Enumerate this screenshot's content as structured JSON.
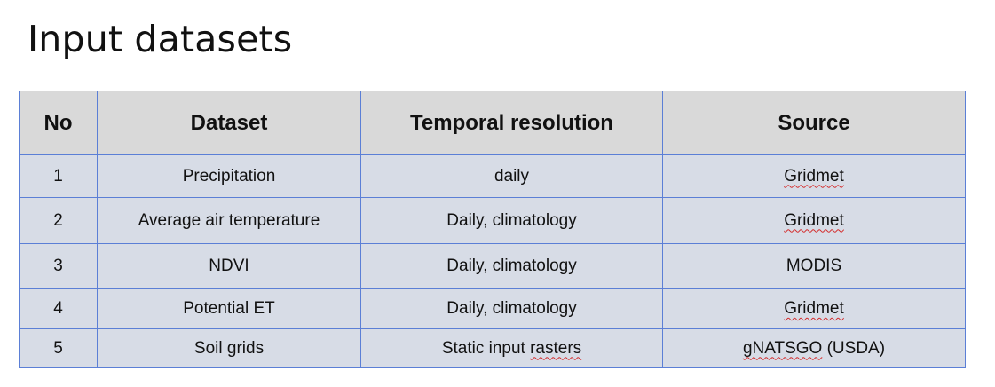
{
  "title": "Input datasets",
  "table": {
    "headers": {
      "no": "No",
      "dataset": "Dataset",
      "temporal_resolution": "Temporal resolution",
      "source": "Source"
    },
    "rows": [
      {
        "no": "1",
        "dataset": "Precipitation",
        "temporal_resolution": "daily",
        "temporal_pre": "",
        "temporal_flag": "",
        "source": "Gridmet",
        "source_suffix": ""
      },
      {
        "no": "2",
        "dataset": "Average air temperature",
        "temporal_resolution": "Daily, climatology",
        "temporal_pre": "",
        "temporal_flag": "",
        "source": "Gridmet",
        "source_suffix": ""
      },
      {
        "no": "3",
        "dataset": "NDVI",
        "temporal_resolution": "Daily, climatology",
        "temporal_pre": "",
        "temporal_flag": "",
        "source": "MODIS",
        "source_suffix": ""
      },
      {
        "no": "4",
        "dataset": "Potential ET",
        "temporal_resolution": "Daily, climatology",
        "temporal_pre": "",
        "temporal_flag": "",
        "source": "Gridmet",
        "source_suffix": ""
      },
      {
        "no": "5",
        "dataset": "Soil grids",
        "temporal_resolution": "",
        "temporal_pre": "Static input ",
        "temporal_flag": "rasters",
        "source": "gNATSGO",
        "source_suffix": " (USDA)"
      }
    ]
  }
}
